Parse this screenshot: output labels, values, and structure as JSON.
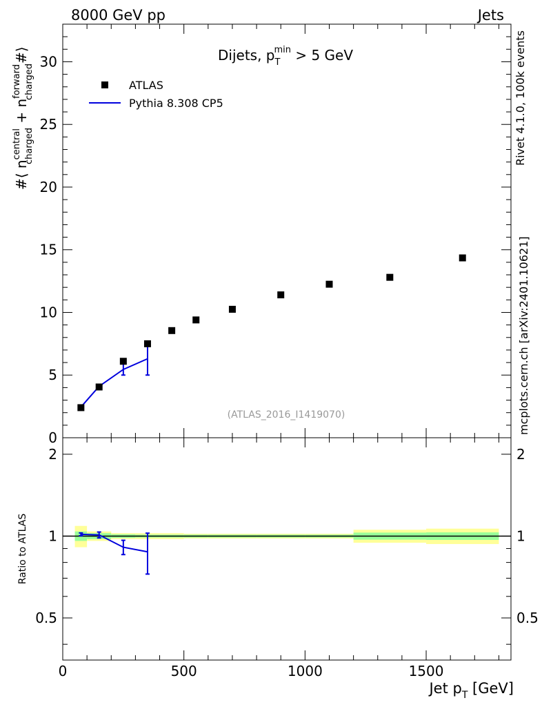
{
  "header": {
    "left": "8000 GeV pp",
    "right": "Jets"
  },
  "side_labels": {
    "rivet": "Rivet 4.1.0,  100k events",
    "mcplots": "mcplots.cern.ch [arXiv:2401.10621]"
  },
  "colors": {
    "data": "#000000",
    "mc": "#0000dd",
    "band_inner": "#99ff99",
    "band_outer": "#ffff99",
    "watermark": "#999999",
    "side_text": "#888888"
  },
  "chart_data": [
    {
      "type": "scatter",
      "panel": "main",
      "title": "Dijets, p_T^min > 5 GeV",
      "title_parts": {
        "base": "Dijets, p",
        "sub": "T",
        "sup": "min",
        "rest": " > 5 GeV"
      },
      "ylabel": "#⟨ n_charged^central + n_charged^forward #⟩",
      "ylabel_parts": {
        "open": "#⟨ n",
        "sup1": "central",
        "sub1": "charged",
        "plus": " + n",
        "sup2": "forward",
        "sub2": "charged",
        "close": "#⟩"
      },
      "xlim": [
        0,
        1850
      ],
      "ylim": [
        0,
        33
      ],
      "yticks": [
        0,
        5,
        10,
        15,
        20,
        25,
        30
      ],
      "legend": [
        "ATLAS",
        "Pythia 8.308 CP5"
      ],
      "legend_position": "top-left",
      "watermark": "(ATLAS_2016_I1419070)",
      "series": [
        {
          "name": "ATLAS",
          "style": "markers",
          "x": [
            75,
            150,
            250,
            350,
            450,
            550,
            700,
            900,
            1100,
            1350,
            1650
          ],
          "y": [
            2.4,
            4.05,
            6.1,
            7.5,
            8.55,
            9.4,
            10.25,
            11.4,
            12.25,
            12.8,
            14.35
          ]
        },
        {
          "name": "Pythia 8.308 CP5",
          "style": "line",
          "x": [
            75,
            150,
            250,
            350
          ],
          "y": [
            2.45,
            4.1,
            5.45,
            6.3
          ],
          "yerr": [
            0.05,
            0.1,
            0.45,
            1.3
          ]
        }
      ]
    },
    {
      "type": "line",
      "panel": "ratio",
      "ylabel": "Ratio to ATLAS",
      "xlabel": "Jet p_T [GeV]",
      "xlabel_parts": {
        "base": "Jet p",
        "sub": "T",
        "rest": " [GeV]"
      },
      "xlim": [
        0,
        1850
      ],
      "ylim": [
        0.35,
        2.3
      ],
      "ytick_labels": [
        "0.5",
        "1",
        "2"
      ],
      "yticks": [
        0.5,
        1,
        2
      ],
      "xtick_labels": [
        "0",
        "500",
        "1000",
        "1500"
      ],
      "xticks": [
        0,
        500,
        1000,
        1500
      ],
      "bands": {
        "bins": [
          [
            50,
            100
          ],
          [
            100,
            200
          ],
          [
            200,
            300
          ],
          [
            300,
            400
          ],
          [
            400,
            500
          ],
          [
            500,
            600
          ],
          [
            600,
            800
          ],
          [
            800,
            1000
          ],
          [
            1000,
            1200
          ],
          [
            1200,
            1500
          ],
          [
            1500,
            1800
          ]
        ],
        "inner": [
          0.04,
          0.025,
          0.015,
          0.012,
          0.012,
          0.012,
          0.012,
          0.012,
          0.012,
          0.03,
          0.032
        ],
        "outer": [
          0.09,
          0.04,
          0.025,
          0.025,
          0.025,
          0.02,
          0.02,
          0.02,
          0.02,
          0.055,
          0.065
        ]
      },
      "series": [
        {
          "name": "Pythia 8.308 CP5 / ATLAS",
          "x": [
            75,
            150,
            250,
            350
          ],
          "y": [
            1.015,
            1.01,
            0.91,
            0.875
          ],
          "yerr": [
            0.012,
            0.025,
            0.055,
            0.15
          ]
        }
      ]
    }
  ]
}
